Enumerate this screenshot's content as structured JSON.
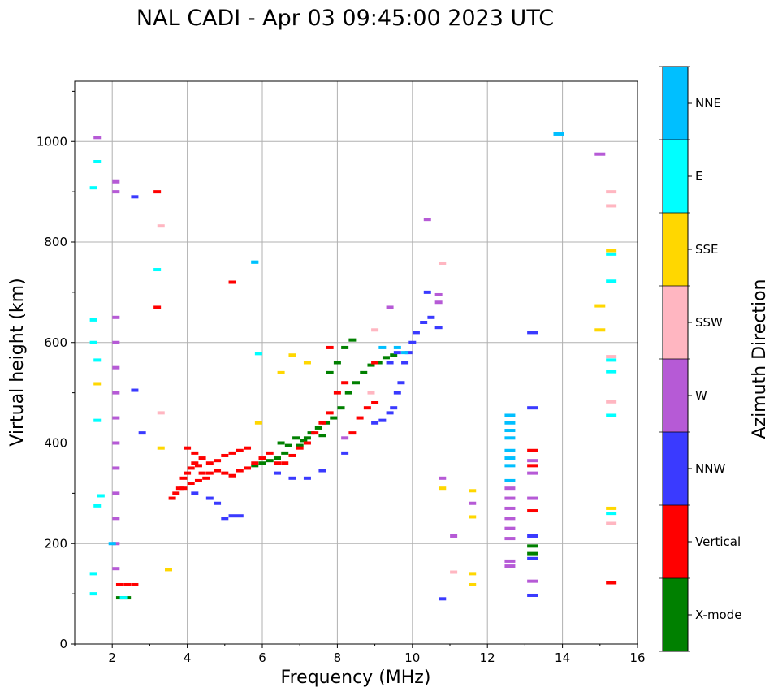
{
  "chart_data": {
    "type": "scatter",
    "title": "NAL CADI - Apr 03 09:45:00 2023 UTC",
    "xlabel": "Frequency (MHz)",
    "ylabel": "Virtual height (km)",
    "xlim": [
      1,
      16
    ],
    "ylim": [
      0,
      1120
    ],
    "xticks": [
      2,
      4,
      6,
      8,
      10,
      12,
      14,
      16
    ],
    "yticks": [
      0,
      200,
      400,
      600,
      800,
      1000
    ],
    "grid": true,
    "colorbar": {
      "label": "Azimuth Direction",
      "categories": [
        "X-mode",
        "Vertical",
        "NNW",
        "W",
        "SSW",
        "SSE",
        "E",
        "NNE"
      ],
      "colors": [
        "#008000",
        "#ff0000",
        "#3a3aff",
        "#b65ad6",
        "#ffb6c1",
        "#ffd700",
        "#00ffff",
        "#00bfff"
      ]
    },
    "series": [
      {
        "name": "X-mode",
        "points": [
          [
            6.5,
            400
          ],
          [
            6.7,
            395
          ],
          [
            6.9,
            410
          ],
          [
            7.1,
            405
          ],
          [
            7.3,
            420
          ],
          [
            7.5,
            430
          ],
          [
            7.7,
            440
          ],
          [
            7.9,
            450
          ],
          [
            8.1,
            470
          ],
          [
            8.3,
            500
          ],
          [
            8.5,
            520
          ],
          [
            8.7,
            540
          ],
          [
            8.9,
            555
          ],
          [
            9.1,
            560
          ],
          [
            9.3,
            570
          ],
          [
            9.5,
            575
          ],
          [
            7.8,
            540
          ],
          [
            8.0,
            560
          ],
          [
            8.2,
            590
          ],
          [
            8.4,
            605
          ],
          [
            6.2,
            365
          ],
          [
            6.4,
            370
          ],
          [
            6.6,
            380
          ],
          [
            7.0,
            395
          ],
          [
            7.2,
            410
          ],
          [
            7.6,
            415
          ],
          [
            5.8,
            355
          ],
          [
            6.0,
            360
          ],
          [
            2.2,
            92
          ],
          [
            2.4,
            92
          ],
          [
            13.2,
            195
          ],
          [
            13.2,
            180
          ]
        ]
      },
      {
        "name": "Vertical",
        "points": [
          [
            3.6,
            290
          ],
          [
            3.7,
            300
          ],
          [
            3.8,
            310
          ],
          [
            3.9,
            330
          ],
          [
            4.0,
            340
          ],
          [
            4.1,
            350
          ],
          [
            4.2,
            360
          ],
          [
            4.3,
            355
          ],
          [
            4.4,
            340
          ],
          [
            4.5,
            330
          ],
          [
            4.6,
            340
          ],
          [
            4.8,
            345
          ],
          [
            5.0,
            340
          ],
          [
            5.2,
            335
          ],
          [
            5.4,
            345
          ],
          [
            5.6,
            350
          ],
          [
            5.8,
            360
          ],
          [
            6.0,
            370
          ],
          [
            6.2,
            380
          ],
          [
            6.4,
            360
          ],
          [
            6.6,
            360
          ],
          [
            6.8,
            375
          ],
          [
            7.0,
            390
          ],
          [
            7.2,
            400
          ],
          [
            7.4,
            420
          ],
          [
            7.6,
            440
          ],
          [
            7.8,
            460
          ],
          [
            8.0,
            500
          ],
          [
            8.2,
            520
          ],
          [
            8.4,
            420
          ],
          [
            8.6,
            450
          ],
          [
            8.8,
            470
          ],
          [
            9.0,
            480
          ],
          [
            9.0,
            560
          ],
          [
            7.8,
            590
          ],
          [
            4.0,
            390
          ],
          [
            4.2,
            380
          ],
          [
            4.4,
            370
          ],
          [
            4.6,
            360
          ],
          [
            4.8,
            365
          ],
          [
            5.0,
            375
          ],
          [
            5.2,
            380
          ],
          [
            5.4,
            385
          ],
          [
            5.6,
            390
          ],
          [
            3.9,
            310
          ],
          [
            4.1,
            320
          ],
          [
            4.3,
            325
          ],
          [
            2.2,
            118
          ],
          [
            2.4,
            118
          ],
          [
            2.6,
            118
          ],
          [
            13.2,
            385
          ],
          [
            13.2,
            265
          ],
          [
            13.2,
            355
          ],
          [
            15.3,
            122
          ],
          [
            5.2,
            720
          ],
          [
            3.2,
            670
          ],
          [
            3.2,
            900
          ]
        ]
      },
      {
        "name": "NNW",
        "points": [
          [
            9.0,
            440
          ],
          [
            9.2,
            445
          ],
          [
            9.4,
            460
          ],
          [
            9.5,
            470
          ],
          [
            9.6,
            500
          ],
          [
            9.7,
            520
          ],
          [
            9.8,
            560
          ],
          [
            9.9,
            580
          ],
          [
            10.0,
            600
          ],
          [
            10.1,
            620
          ],
          [
            10.3,
            640
          ],
          [
            10.5,
            650
          ],
          [
            10.7,
            630
          ],
          [
            9.6,
            580
          ],
          [
            9.4,
            560
          ],
          [
            5.0,
            250
          ],
          [
            5.2,
            255
          ],
          [
            5.4,
            255
          ],
          [
            4.2,
            300
          ],
          [
            4.6,
            290
          ],
          [
            4.8,
            280
          ],
          [
            6.4,
            340
          ],
          [
            6.8,
            330
          ],
          [
            7.2,
            330
          ],
          [
            7.6,
            345
          ],
          [
            8.2,
            380
          ],
          [
            13.2,
            470
          ],
          [
            13.2,
            620
          ],
          [
            13.2,
            215
          ],
          [
            13.2,
            170
          ],
          [
            13.2,
            97
          ],
          [
            10.8,
            90
          ],
          [
            2.6,
            890
          ],
          [
            2.6,
            505
          ],
          [
            2.8,
            420
          ],
          [
            10.4,
            700
          ]
        ]
      },
      {
        "name": "W",
        "points": [
          [
            2.1,
            400
          ],
          [
            2.1,
            450
          ],
          [
            2.1,
            500
          ],
          [
            2.1,
            550
          ],
          [
            2.1,
            600
          ],
          [
            2.1,
            650
          ],
          [
            2.1,
            350
          ],
          [
            2.1,
            300
          ],
          [
            2.1,
            250
          ],
          [
            2.1,
            200
          ],
          [
            2.1,
            150
          ],
          [
            2.1,
            900
          ],
          [
            2.1,
            920
          ],
          [
            12.6,
            310
          ],
          [
            12.6,
            290
          ],
          [
            12.6,
            270
          ],
          [
            12.6,
            250
          ],
          [
            12.6,
            230
          ],
          [
            12.6,
            210
          ],
          [
            12.6,
            165
          ],
          [
            12.6,
            155
          ],
          [
            13.2,
            365
          ],
          [
            13.2,
            340
          ],
          [
            13.2,
            125
          ],
          [
            13.2,
            290
          ],
          [
            15.0,
            975
          ],
          [
            10.4,
            845
          ],
          [
            10.7,
            695
          ],
          [
            10.7,
            680
          ],
          [
            9.4,
            670
          ],
          [
            11.6,
            280
          ],
          [
            11.1,
            215
          ],
          [
            10.8,
            330
          ],
          [
            8.2,
            410
          ],
          [
            1.6,
            1008
          ]
        ]
      },
      {
        "name": "SSW",
        "points": [
          [
            15.3,
            900
          ],
          [
            15.3,
            872
          ],
          [
            15.3,
            572
          ],
          [
            15.3,
            482
          ],
          [
            15.3,
            240
          ],
          [
            10.8,
            758
          ],
          [
            3.3,
            460
          ],
          [
            3.3,
            832
          ],
          [
            11.1,
            143
          ],
          [
            9.0,
            625
          ],
          [
            8.9,
            500
          ]
        ]
      },
      {
        "name": "SSE",
        "points": [
          [
            15.3,
            783
          ],
          [
            15.3,
            270
          ],
          [
            15.0,
            673
          ],
          [
            15.0,
            625
          ],
          [
            10.8,
            310
          ],
          [
            11.6,
            305
          ],
          [
            11.6,
            253
          ],
          [
            11.6,
            140
          ],
          [
            11.6,
            118
          ],
          [
            3.5,
            148
          ],
          [
            3.3,
            390
          ],
          [
            6.8,
            575
          ],
          [
            7.2,
            560
          ],
          [
            5.9,
            440
          ],
          [
            6.5,
            540
          ],
          [
            1.6,
            518
          ]
        ]
      },
      {
        "name": "E",
        "points": [
          [
            15.3,
            776
          ],
          [
            15.3,
            722
          ],
          [
            15.3,
            565
          ],
          [
            15.3,
            542
          ],
          [
            15.3,
            455
          ],
          [
            15.3,
            260
          ],
          [
            3.2,
            745
          ],
          [
            5.8,
            760
          ],
          [
            5.9,
            578
          ],
          [
            1.6,
            960
          ],
          [
            1.5,
            908
          ],
          [
            1.5,
            645
          ],
          [
            1.5,
            600
          ],
          [
            1.6,
            565
          ],
          [
            1.6,
            445
          ],
          [
            1.5,
            140
          ],
          [
            1.5,
            100
          ],
          [
            1.7,
            295
          ],
          [
            1.6,
            275
          ],
          [
            2.3,
            92
          ]
        ]
      },
      {
        "name": "NNE",
        "points": [
          [
            12.6,
            455
          ],
          [
            12.6,
            440
          ],
          [
            12.6,
            425
          ],
          [
            12.6,
            410
          ],
          [
            12.6,
            385
          ],
          [
            12.6,
            370
          ],
          [
            12.6,
            355
          ],
          [
            12.6,
            325
          ],
          [
            9.6,
            590
          ],
          [
            9.8,
            580
          ],
          [
            9.2,
            590
          ],
          [
            5.8,
            760
          ],
          [
            13.9,
            1015
          ],
          [
            2.0,
            200
          ]
        ]
      }
    ]
  }
}
